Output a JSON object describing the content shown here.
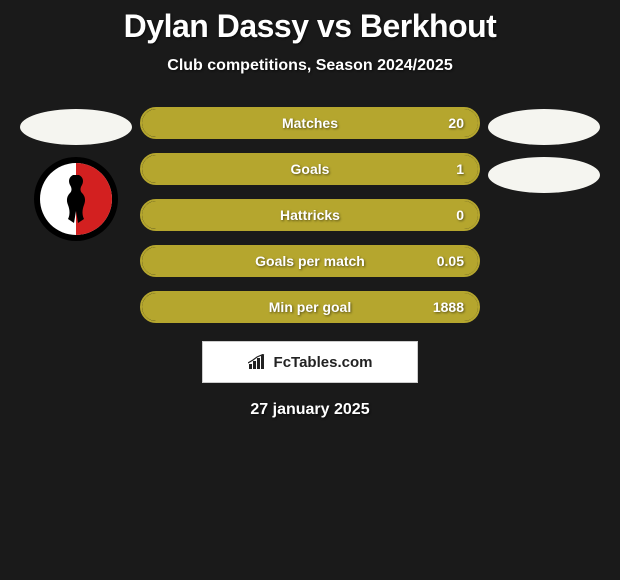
{
  "title": "Dylan Dassy vs Berkhout",
  "subtitle": "Club competitions, Season 2024/2025",
  "accent_color": "#b5a62e",
  "fill_color": "#b5a62e",
  "border_color": "#b5a62e",
  "background_color": "#1a1a1a",
  "stats": [
    {
      "label": "Matches",
      "value": "20",
      "fill_pct": 100
    },
    {
      "label": "Goals",
      "value": "1",
      "fill_pct": 100
    },
    {
      "label": "Hattricks",
      "value": "0",
      "fill_pct": 100
    },
    {
      "label": "Goals per match",
      "value": "0.05",
      "fill_pct": 100
    },
    {
      "label": "Min per goal",
      "value": "1888",
      "fill_pct": 100
    }
  ],
  "left_badges": {
    "ellipse_count": 1,
    "club_badge": {
      "outer_color": "#000000",
      "inner_color": "#ffffff",
      "half_color": "#d32020"
    }
  },
  "right_badges": {
    "ellipse_count": 2
  },
  "attribution": "FcTables.com",
  "date": "27 january 2025",
  "fontsize": {
    "title": 32,
    "subtitle": 16,
    "stat": 14,
    "attribution": 15,
    "date": 16
  }
}
